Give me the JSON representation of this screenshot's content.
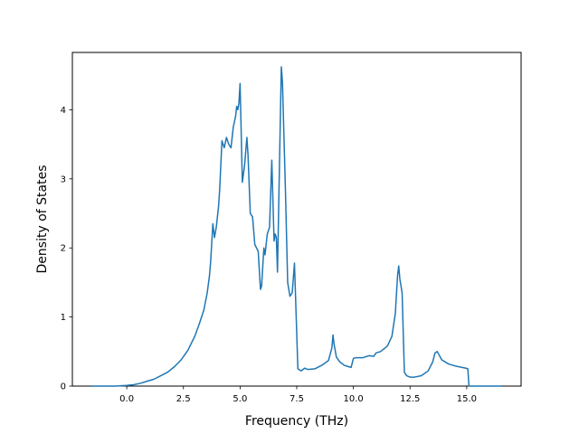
{
  "chart_data": {
    "type": "line",
    "title": "",
    "xlabel": "Frequency (THz)",
    "ylabel": "Density of States",
    "xlim": [
      -2.4,
      17.4
    ],
    "ylim": [
      0,
      4.83
    ],
    "xticks": [
      0,
      2.5,
      5,
      7.5,
      10,
      12.5,
      15
    ],
    "xtick_labels": [
      "0.0",
      "2.5",
      "5.0",
      "7.5",
      "10.0",
      "12.5",
      "15.0"
    ],
    "yticks": [
      0,
      1,
      2,
      3,
      4
    ],
    "ytick_labels": [
      "0",
      "1",
      "2",
      "3",
      "4"
    ],
    "grid": false,
    "line_color": "#1f77b4",
    "series": [
      {
        "x": [
          -1.5,
          -0.5,
          0.0,
          0.3,
          0.6,
          0.9,
          1.2,
          1.5,
          1.8,
          2.1,
          2.4,
          2.7,
          3.0,
          3.2,
          3.4,
          3.55,
          3.65,
          3.7,
          3.8,
          3.87,
          3.95,
          4.05,
          4.1,
          4.2,
          4.3,
          4.4,
          4.5,
          4.6,
          4.7,
          4.8,
          4.85,
          4.9,
          4.95,
          5.0,
          5.1,
          5.2,
          5.3,
          5.35,
          5.45,
          5.55,
          5.65,
          5.8,
          5.9,
          5.95,
          6.05,
          6.1,
          6.2,
          6.3,
          6.4,
          6.5,
          6.55,
          6.6,
          6.65,
          6.75,
          6.82,
          6.87,
          7.0,
          7.1,
          7.2,
          7.3,
          7.4,
          7.55,
          7.7,
          7.85,
          8.0,
          8.3,
          8.6,
          8.9,
          9.05,
          9.1,
          9.15,
          9.25,
          9.4,
          9.6,
          9.9,
          10.0,
          10.1,
          10.4,
          10.7,
          10.9,
          11.0,
          11.2,
          11.5,
          11.7,
          11.85,
          11.95,
          12.0,
          12.05,
          12.15,
          12.25,
          12.35,
          12.5,
          12.7,
          13.0,
          13.3,
          13.5,
          13.6,
          13.7,
          13.9,
          14.2,
          14.5,
          14.8,
          14.95,
          15.05,
          15.1,
          15.2,
          15.5,
          16.5
        ],
        "values": [
          0,
          0,
          0.01,
          0.02,
          0.04,
          0.07,
          0.1,
          0.15,
          0.2,
          0.28,
          0.38,
          0.52,
          0.72,
          0.9,
          1.1,
          1.35,
          1.6,
          1.8,
          2.35,
          2.15,
          2.3,
          2.6,
          2.85,
          3.55,
          3.45,
          3.6,
          3.5,
          3.45,
          3.75,
          3.9,
          4.05,
          4.0,
          4.1,
          4.38,
          2.95,
          3.2,
          3.6,
          3.35,
          2.5,
          2.45,
          2.05,
          1.95,
          1.4,
          1.45,
          2.0,
          1.9,
          2.2,
          2.3,
          3.27,
          2.1,
          2.2,
          2.15,
          1.65,
          3.4,
          4.62,
          4.4,
          2.85,
          1.5,
          1.3,
          1.35,
          1.78,
          0.25,
          0.22,
          0.26,
          0.24,
          0.25,
          0.3,
          0.37,
          0.55,
          0.74,
          0.6,
          0.42,
          0.35,
          0.3,
          0.27,
          0.4,
          0.41,
          0.41,
          0.44,
          0.43,
          0.48,
          0.5,
          0.58,
          0.72,
          1.05,
          1.6,
          1.74,
          1.55,
          1.35,
          0.2,
          0.15,
          0.13,
          0.13,
          0.15,
          0.22,
          0.35,
          0.48,
          0.5,
          0.38,
          0.32,
          0.29,
          0.27,
          0.26,
          0.25,
          0.0,
          0.0,
          0.0,
          0.0
        ]
      }
    ]
  }
}
